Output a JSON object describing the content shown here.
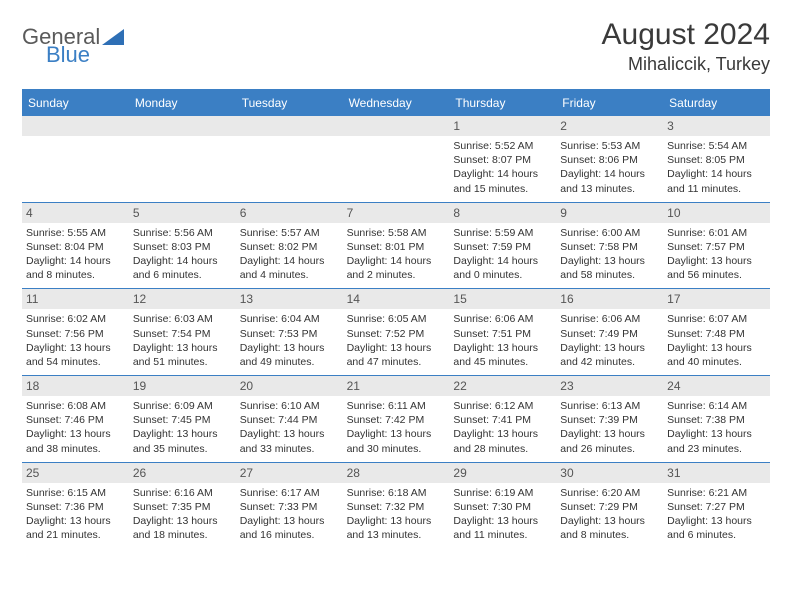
{
  "brand": {
    "word1": "General",
    "word2": "Blue"
  },
  "title": "August 2024",
  "location": "Mihaliccik, Turkey",
  "colors": {
    "accent": "#3b7fc4",
    "header_text": "#ffffff",
    "daynum_bg": "#e9e9e9",
    "daynum_text": "#555555",
    "body_text": "#333333",
    "title_text": "#3a3a3a",
    "logo_gray": "#5a5a5a"
  },
  "day_headers": [
    "Sunday",
    "Monday",
    "Tuesday",
    "Wednesday",
    "Thursday",
    "Friday",
    "Saturday"
  ],
  "weeks": [
    [
      null,
      null,
      null,
      null,
      {
        "n": "1",
        "sr": "5:52 AM",
        "ss": "8:07 PM",
        "dl1": "14 hours",
        "dl2": "and 15 minutes."
      },
      {
        "n": "2",
        "sr": "5:53 AM",
        "ss": "8:06 PM",
        "dl1": "14 hours",
        "dl2": "and 13 minutes."
      },
      {
        "n": "3",
        "sr": "5:54 AM",
        "ss": "8:05 PM",
        "dl1": "14 hours",
        "dl2": "and 11 minutes."
      }
    ],
    [
      {
        "n": "4",
        "sr": "5:55 AM",
        "ss": "8:04 PM",
        "dl1": "14 hours",
        "dl2": "and 8 minutes."
      },
      {
        "n": "5",
        "sr": "5:56 AM",
        "ss": "8:03 PM",
        "dl1": "14 hours",
        "dl2": "and 6 minutes."
      },
      {
        "n": "6",
        "sr": "5:57 AM",
        "ss": "8:02 PM",
        "dl1": "14 hours",
        "dl2": "and 4 minutes."
      },
      {
        "n": "7",
        "sr": "5:58 AM",
        "ss": "8:01 PM",
        "dl1": "14 hours",
        "dl2": "and 2 minutes."
      },
      {
        "n": "8",
        "sr": "5:59 AM",
        "ss": "7:59 PM",
        "dl1": "14 hours",
        "dl2": "and 0 minutes."
      },
      {
        "n": "9",
        "sr": "6:00 AM",
        "ss": "7:58 PM",
        "dl1": "13 hours",
        "dl2": "and 58 minutes."
      },
      {
        "n": "10",
        "sr": "6:01 AM",
        "ss": "7:57 PM",
        "dl1": "13 hours",
        "dl2": "and 56 minutes."
      }
    ],
    [
      {
        "n": "11",
        "sr": "6:02 AM",
        "ss": "7:56 PM",
        "dl1": "13 hours",
        "dl2": "and 54 minutes."
      },
      {
        "n": "12",
        "sr": "6:03 AM",
        "ss": "7:54 PM",
        "dl1": "13 hours",
        "dl2": "and 51 minutes."
      },
      {
        "n": "13",
        "sr": "6:04 AM",
        "ss": "7:53 PM",
        "dl1": "13 hours",
        "dl2": "and 49 minutes."
      },
      {
        "n": "14",
        "sr": "6:05 AM",
        "ss": "7:52 PM",
        "dl1": "13 hours",
        "dl2": "and 47 minutes."
      },
      {
        "n": "15",
        "sr": "6:06 AM",
        "ss": "7:51 PM",
        "dl1": "13 hours",
        "dl2": "and 45 minutes."
      },
      {
        "n": "16",
        "sr": "6:06 AM",
        "ss": "7:49 PM",
        "dl1": "13 hours",
        "dl2": "and 42 minutes."
      },
      {
        "n": "17",
        "sr": "6:07 AM",
        "ss": "7:48 PM",
        "dl1": "13 hours",
        "dl2": "and 40 minutes."
      }
    ],
    [
      {
        "n": "18",
        "sr": "6:08 AM",
        "ss": "7:46 PM",
        "dl1": "13 hours",
        "dl2": "and 38 minutes."
      },
      {
        "n": "19",
        "sr": "6:09 AM",
        "ss": "7:45 PM",
        "dl1": "13 hours",
        "dl2": "and 35 minutes."
      },
      {
        "n": "20",
        "sr": "6:10 AM",
        "ss": "7:44 PM",
        "dl1": "13 hours",
        "dl2": "and 33 minutes."
      },
      {
        "n": "21",
        "sr": "6:11 AM",
        "ss": "7:42 PM",
        "dl1": "13 hours",
        "dl2": "and 30 minutes."
      },
      {
        "n": "22",
        "sr": "6:12 AM",
        "ss": "7:41 PM",
        "dl1": "13 hours",
        "dl2": "and 28 minutes."
      },
      {
        "n": "23",
        "sr": "6:13 AM",
        "ss": "7:39 PM",
        "dl1": "13 hours",
        "dl2": "and 26 minutes."
      },
      {
        "n": "24",
        "sr": "6:14 AM",
        "ss": "7:38 PM",
        "dl1": "13 hours",
        "dl2": "and 23 minutes."
      }
    ],
    [
      {
        "n": "25",
        "sr": "6:15 AM",
        "ss": "7:36 PM",
        "dl1": "13 hours",
        "dl2": "and 21 minutes."
      },
      {
        "n": "26",
        "sr": "6:16 AM",
        "ss": "7:35 PM",
        "dl1": "13 hours",
        "dl2": "and 18 minutes."
      },
      {
        "n": "27",
        "sr": "6:17 AM",
        "ss": "7:33 PM",
        "dl1": "13 hours",
        "dl2": "and 16 minutes."
      },
      {
        "n": "28",
        "sr": "6:18 AM",
        "ss": "7:32 PM",
        "dl1": "13 hours",
        "dl2": "and 13 minutes."
      },
      {
        "n": "29",
        "sr": "6:19 AM",
        "ss": "7:30 PM",
        "dl1": "13 hours",
        "dl2": "and 11 minutes."
      },
      {
        "n": "30",
        "sr": "6:20 AM",
        "ss": "7:29 PM",
        "dl1": "13 hours",
        "dl2": "and 8 minutes."
      },
      {
        "n": "31",
        "sr": "6:21 AM",
        "ss": "7:27 PM",
        "dl1": "13 hours",
        "dl2": "and 6 minutes."
      }
    ]
  ],
  "labels": {
    "sunrise_prefix": "Sunrise: ",
    "sunset_prefix": "Sunset: ",
    "daylight_prefix": "Daylight: "
  }
}
